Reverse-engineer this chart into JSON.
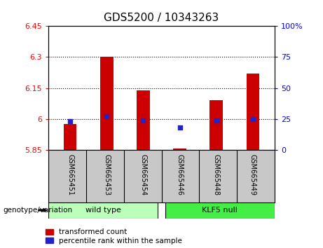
{
  "title": "GDS5200 / 10343263",
  "categories": [
    "GSM665451",
    "GSM665453",
    "GSM665454",
    "GSM665446",
    "GSM665448",
    "GSM665449"
  ],
  "red_values": [
    5.975,
    6.3,
    6.14,
    5.856,
    6.09,
    6.22
  ],
  "blue_values": [
    23,
    27,
    24,
    18,
    24,
    25
  ],
  "ylim_left": [
    5.85,
    6.45
  ],
  "ylim_right": [
    0,
    100
  ],
  "yticks_left": [
    5.85,
    6.0,
    6.15,
    6.3,
    6.45
  ],
  "yticks_right": [
    0,
    25,
    50,
    75,
    100
  ],
  "ytick_labels_left": [
    "5.85",
    "6",
    "6.15",
    "6.3",
    "6.45"
  ],
  "ytick_labels_right": [
    "0",
    "25",
    "50",
    "75",
    "100%"
  ],
  "hlines": [
    6.0,
    6.15,
    6.3
  ],
  "wild_type_label": "wild type",
  "klf5_null_label": "KLF5 null",
  "genotype_label": "genotype/variation",
  "legend_red": "transformed count",
  "legend_blue": "percentile rank within the sample",
  "bar_color": "#cc0000",
  "dot_color": "#2222cc",
  "wild_type_color": "#bbffbb",
  "klf5_null_color": "#44ee44",
  "tick_label_area_color": "#c8c8c8",
  "bar_bottom": 5.85,
  "bar_width": 0.35,
  "title_fontsize": 11,
  "axis_fontsize": 8,
  "label_fontsize": 8
}
